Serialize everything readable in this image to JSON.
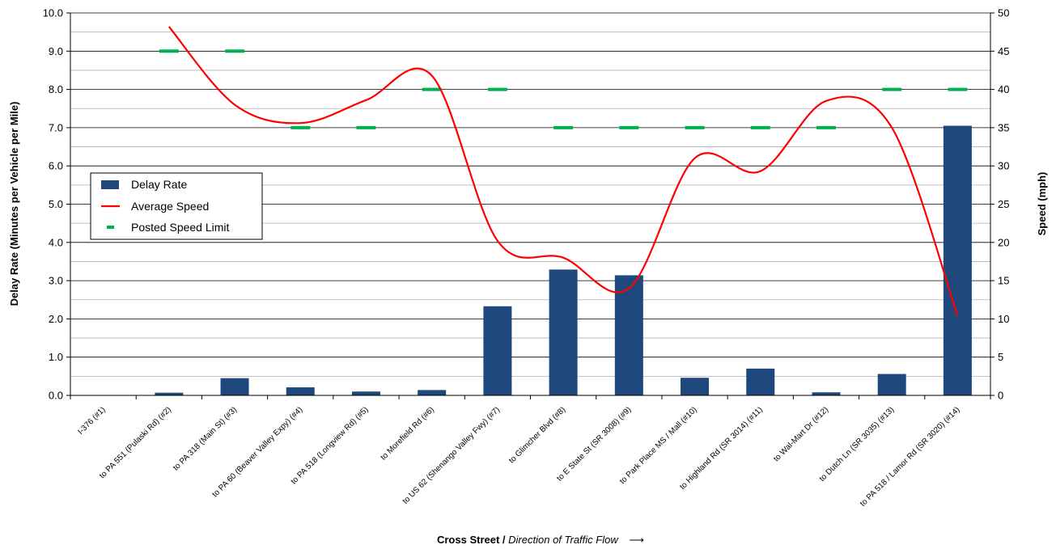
{
  "chart_data": {
    "type": "bar",
    "categories": [
      "I-376 (#1)",
      "to PA 551 (Pulaski Rd) (#2)",
      "to PA 318 (Main St) (#3)",
      "to PA 60 (Beaver Valley Expy) (#4)",
      "to PA 518 (Longview Rd) (#5)",
      "to Morefield Rd (#6)",
      "to US 62 (Shenango Valley Fwy) (#7)",
      "to Glimcher Blvd (#8)",
      "to E State St (SR 3008) (#9)",
      "to Park Place MS / Mall (#10)",
      "to Highland Rd (SR 3014) (#11)",
      "to Wal-Mart Dr (#12)",
      "to Dutch Ln (SR 3035) (#13)",
      "to PA 518 / Lamor Rd (SR 3020) (#14)"
    ],
    "series": [
      {
        "name": "Delay Rate",
        "type": "bar",
        "axis": "left",
        "color": "#1f497d",
        "values": [
          0,
          0.07,
          0.45,
          0.21,
          0.1,
          0.14,
          2.33,
          3.29,
          3.14,
          0.46,
          0.7,
          0.08,
          0.56,
          7.05
        ]
      },
      {
        "name": "Average Speed",
        "type": "line",
        "axis": "right",
        "color": "#ff0000",
        "values": [
          null,
          48.2,
          38.0,
          35.6,
          38.6,
          41.8,
          20.2,
          18.0,
          14.0,
          31.0,
          29.3,
          38.5,
          35.0,
          10.4
        ]
      },
      {
        "name": "Posted Speed Limit",
        "type": "marker",
        "axis": "right",
        "color": "#00b050",
        "values": [
          null,
          45,
          45,
          35,
          35,
          40,
          40,
          35,
          35,
          35,
          35,
          35,
          40,
          40
        ]
      }
    ],
    "ylabel": "Delay Rate (Minutes per Vehicle per Mile)",
    "y2label": "Speed (mph)",
    "xlabel_bold": "Cross Street /",
    "xlabel_italic": "Direction of Traffic Flow",
    "xlabel_arrow": "⟶",
    "ylim": [
      0,
      10
    ],
    "y2lim": [
      0,
      50
    ],
    "yticks": [
      "0.0",
      "1.0",
      "2.0",
      "3.0",
      "4.0",
      "5.0",
      "6.0",
      "7.0",
      "8.0",
      "9.0",
      "10.0"
    ],
    "y2ticks": [
      "0",
      "5",
      "10",
      "15",
      "20",
      "25",
      "30",
      "35",
      "40",
      "45",
      "50"
    ],
    "grid": true,
    "legend_position": "left-middle"
  }
}
